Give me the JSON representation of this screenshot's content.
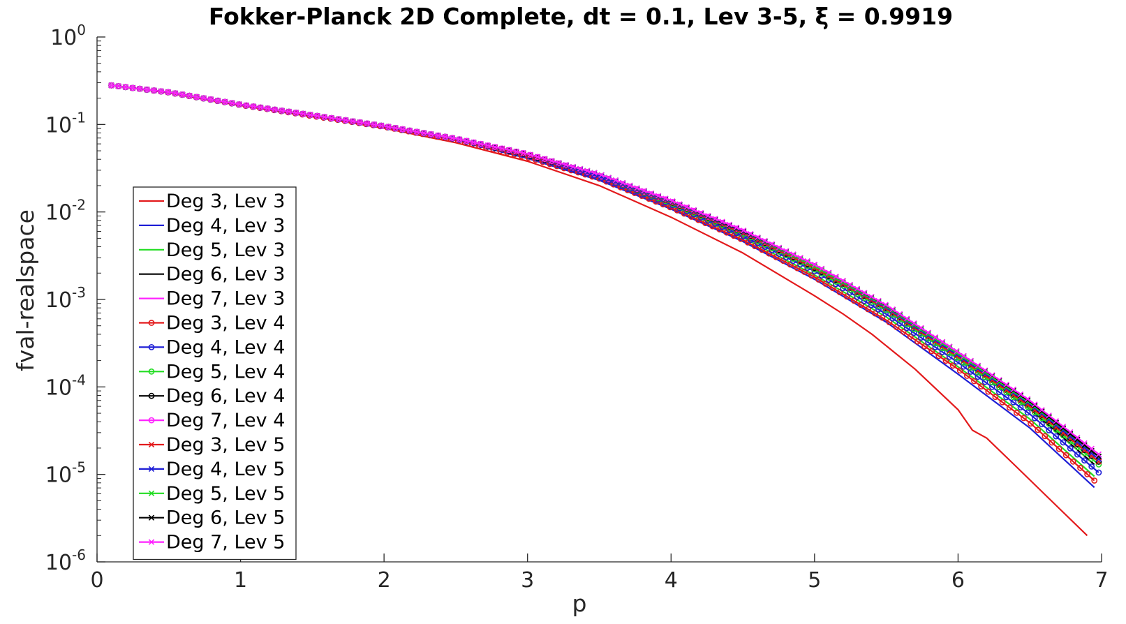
{
  "chart_data": {
    "type": "line",
    "title": "Fokker-Planck 2D Complete, dt = 0.1, Lev 3-5, ξ = 0.9919",
    "xlabel": "p",
    "ylabel": "fval-realspace",
    "xlim": [
      0,
      7
    ],
    "ylim": [
      1e-06,
      1
    ],
    "yscale": "log",
    "grid": false,
    "legend_position": "bottom-left",
    "x_ticks": [
      "0",
      "1",
      "2",
      "3",
      "4",
      "5",
      "6",
      "7"
    ],
    "y_ticks": [
      {
        "base": "10",
        "exp": "-6"
      },
      {
        "base": "10",
        "exp": "-5"
      },
      {
        "base": "10",
        "exp": "-4"
      },
      {
        "base": "10",
        "exp": "-3"
      },
      {
        "base": "10",
        "exp": "-2"
      },
      {
        "base": "10",
        "exp": "-1"
      },
      {
        "base": "10",
        "exp": "0"
      }
    ],
    "colors": {
      "red": "#e31a1c",
      "blue": "#1f1fd6",
      "green": "#22dd22",
      "black": "#000000",
      "magenta": "#ff22ff"
    },
    "series": [
      {
        "name": "Deg 3, Lev 3",
        "color": "#e31a1c",
        "marker": "none",
        "x": [
          0.1,
          0.5,
          1.0,
          1.5,
          2.0,
          2.5,
          3.0,
          3.5,
          4.0,
          4.5,
          5.0,
          5.2,
          5.4,
          5.7,
          6.0,
          6.1,
          6.2,
          6.4,
          6.6,
          6.9
        ],
        "y": [
          0.28,
          0.23,
          0.165,
          0.123,
          0.091,
          0.062,
          0.038,
          0.02,
          0.0087,
          0.0034,
          0.0011,
          0.00068,
          0.0004,
          0.00016,
          5.5e-05,
          3.2e-05,
          2.6e-05,
          1.25e-05,
          6e-06,
          2e-06
        ]
      },
      {
        "name": "Deg 4, Lev 3",
        "color": "#1f1fd6",
        "marker": "none",
        "x": [
          0.1,
          0.5,
          1.0,
          1.5,
          2.0,
          2.5,
          3.0,
          3.5,
          4.0,
          4.5,
          5.0,
          5.5,
          6.0,
          6.5,
          6.95
        ],
        "y": [
          0.28,
          0.232,
          0.167,
          0.126,
          0.094,
          0.066,
          0.041,
          0.023,
          0.0108,
          0.0046,
          0.0017,
          0.00055,
          0.00014,
          3.4e-05,
          7.1e-06
        ]
      },
      {
        "name": "Deg 5, Lev 3",
        "color": "#22dd22",
        "marker": "none",
        "x": [
          0.1,
          0.5,
          1.0,
          1.5,
          2.0,
          2.5,
          3.0,
          3.5,
          4.0,
          4.5,
          5.0,
          5.5,
          6.0,
          6.5,
          6.95
        ],
        "y": [
          0.28,
          0.233,
          0.168,
          0.127,
          0.095,
          0.068,
          0.043,
          0.024,
          0.0118,
          0.0051,
          0.0019,
          0.00063,
          0.00017,
          4.3e-05,
          9.5e-06
        ]
      },
      {
        "name": "Deg 6, Lev 3",
        "color": "#000000",
        "marker": "none",
        "x": [
          0.1,
          0.5,
          1.0,
          1.5,
          2.0,
          2.5,
          3.0,
          3.5,
          4.0,
          4.5,
          5.0,
          5.5,
          6.0,
          6.5,
          6.95
        ],
        "y": [
          0.28,
          0.234,
          0.169,
          0.128,
          0.096,
          0.069,
          0.044,
          0.025,
          0.0125,
          0.0056,
          0.0022,
          0.00075,
          0.00021,
          5.6e-05,
          1.3e-05
        ]
      },
      {
        "name": "Deg 7, Lev 3",
        "color": "#ff22ff",
        "marker": "none",
        "x": [
          0.1,
          0.5,
          1.0,
          1.5,
          2.0,
          2.5,
          3.0,
          3.5,
          4.0,
          4.5,
          5.0,
          5.5,
          6.0,
          6.5,
          6.95
        ],
        "y": [
          0.28,
          0.234,
          0.169,
          0.128,
          0.096,
          0.069,
          0.045,
          0.026,
          0.0129,
          0.0058,
          0.0023,
          0.00079,
          0.00023,
          6.3e-05,
          1.5e-05
        ]
      },
      {
        "name": "Deg 3, Lev 4",
        "color": "#e31a1c",
        "marker": "o",
        "x": [
          0.1,
          0.5,
          1.0,
          1.5,
          2.0,
          2.5,
          3.0,
          3.5,
          4.0,
          4.5,
          5.0,
          5.5,
          6.0,
          6.5,
          6.95
        ],
        "y": [
          0.28,
          0.232,
          0.167,
          0.125,
          0.094,
          0.066,
          0.042,
          0.024,
          0.0112,
          0.0048,
          0.0018,
          0.00058,
          0.00016,
          3.9e-05,
          8.5e-06
        ]
      },
      {
        "name": "Deg 4, Lev 4",
        "color": "#1f1fd6",
        "marker": "o",
        "x": [
          0.1,
          0.5,
          1.0,
          1.5,
          2.0,
          2.5,
          3.0,
          3.5,
          4.0,
          4.5,
          5.0,
          5.5,
          6.0,
          6.5,
          6.98
        ],
        "y": [
          0.28,
          0.233,
          0.168,
          0.127,
          0.095,
          0.068,
          0.044,
          0.025,
          0.0122,
          0.0053,
          0.0021,
          0.00068,
          0.00019,
          4.9e-05,
          1.05e-05
        ]
      },
      {
        "name": "Deg 5, Lev 4",
        "color": "#22dd22",
        "marker": "o",
        "x": [
          0.1,
          0.5,
          1.0,
          1.5,
          2.0,
          2.5,
          3.0,
          3.5,
          4.0,
          4.5,
          5.0,
          5.5,
          6.0,
          6.5,
          6.98
        ],
        "y": [
          0.28,
          0.234,
          0.169,
          0.128,
          0.096,
          0.069,
          0.045,
          0.026,
          0.0127,
          0.0057,
          0.0022,
          0.00075,
          0.00021,
          5.7e-05,
          1.3e-05
        ]
      },
      {
        "name": "Deg 6, Lev 4",
        "color": "#000000",
        "marker": "o",
        "x": [
          0.1,
          0.5,
          1.0,
          1.5,
          2.0,
          2.5,
          3.0,
          3.5,
          4.0,
          4.5,
          5.0,
          5.5,
          6.0,
          6.5,
          6.98
        ],
        "y": [
          0.28,
          0.234,
          0.169,
          0.128,
          0.096,
          0.069,
          0.045,
          0.026,
          0.013,
          0.0059,
          0.0023,
          0.0008,
          0.00023,
          6.2e-05,
          1.4e-05
        ]
      },
      {
        "name": "Deg 7, Lev 4",
        "color": "#ff22ff",
        "marker": "o",
        "x": [
          0.1,
          0.5,
          1.0,
          1.5,
          2.0,
          2.5,
          3.0,
          3.5,
          4.0,
          4.5,
          5.0,
          5.5,
          6.0,
          6.5,
          6.98
        ],
        "y": [
          0.28,
          0.234,
          0.169,
          0.128,
          0.096,
          0.069,
          0.046,
          0.026,
          0.0132,
          0.006,
          0.0024,
          0.00082,
          0.00024,
          6.5e-05,
          1.5e-05
        ]
      },
      {
        "name": "Deg 3, Lev 5",
        "color": "#e31a1c",
        "marker": "x",
        "x": [
          0.1,
          0.5,
          1.0,
          1.5,
          2.0,
          2.5,
          3.0,
          3.5,
          4.0,
          4.5,
          5.0,
          5.5,
          6.0,
          6.5,
          6.98
        ],
        "y": [
          0.28,
          0.234,
          0.169,
          0.128,
          0.096,
          0.069,
          0.045,
          0.026,
          0.0128,
          0.0058,
          0.0023,
          0.00078,
          0.00022,
          6e-05,
          1.4e-05
        ]
      },
      {
        "name": "Deg 4, Lev 5",
        "color": "#1f1fd6",
        "marker": "x",
        "x": [
          0.1,
          0.5,
          1.0,
          1.5,
          2.0,
          2.5,
          3.0,
          3.5,
          4.0,
          4.5,
          5.0,
          5.5,
          6.0,
          6.5,
          6.98
        ],
        "y": [
          0.28,
          0.234,
          0.169,
          0.128,
          0.096,
          0.069,
          0.046,
          0.026,
          0.0131,
          0.006,
          0.0024,
          0.00081,
          0.00023,
          6.4e-05,
          1.5e-05
        ]
      },
      {
        "name": "Deg 5, Lev 5",
        "color": "#22dd22",
        "marker": "x",
        "x": [
          0.1,
          0.5,
          1.0,
          1.5,
          2.0,
          2.5,
          3.0,
          3.5,
          4.0,
          4.5,
          5.0,
          5.5,
          6.0,
          6.5,
          6.98
        ],
        "y": [
          0.28,
          0.234,
          0.169,
          0.128,
          0.096,
          0.069,
          0.046,
          0.027,
          0.0133,
          0.0061,
          0.0024,
          0.00083,
          0.00024,
          6.6e-05,
          1.6e-05
        ]
      },
      {
        "name": "Deg 6, Lev 5",
        "color": "#000000",
        "marker": "x",
        "x": [
          0.1,
          0.5,
          1.0,
          1.5,
          2.0,
          2.5,
          3.0,
          3.5,
          4.0,
          4.5,
          5.0,
          5.5,
          6.0,
          6.5,
          6.98
        ],
        "y": [
          0.28,
          0.234,
          0.169,
          0.128,
          0.096,
          0.069,
          0.046,
          0.027,
          0.0134,
          0.0061,
          0.0025,
          0.00085,
          0.00025,
          6.8e-05,
          1.6e-05
        ]
      },
      {
        "name": "Deg 7, Lev 5",
        "color": "#ff22ff",
        "marker": "x",
        "x": [
          0.1,
          0.5,
          1.0,
          1.5,
          2.0,
          2.5,
          3.0,
          3.5,
          4.0,
          4.5,
          5.0,
          5.5,
          6.0,
          6.5,
          6.98
        ],
        "y": [
          0.28,
          0.234,
          0.169,
          0.128,
          0.096,
          0.069,
          0.046,
          0.027,
          0.0135,
          0.0062,
          0.0025,
          0.00086,
          0.00025,
          7e-05,
          1.7e-05
        ]
      }
    ]
  }
}
